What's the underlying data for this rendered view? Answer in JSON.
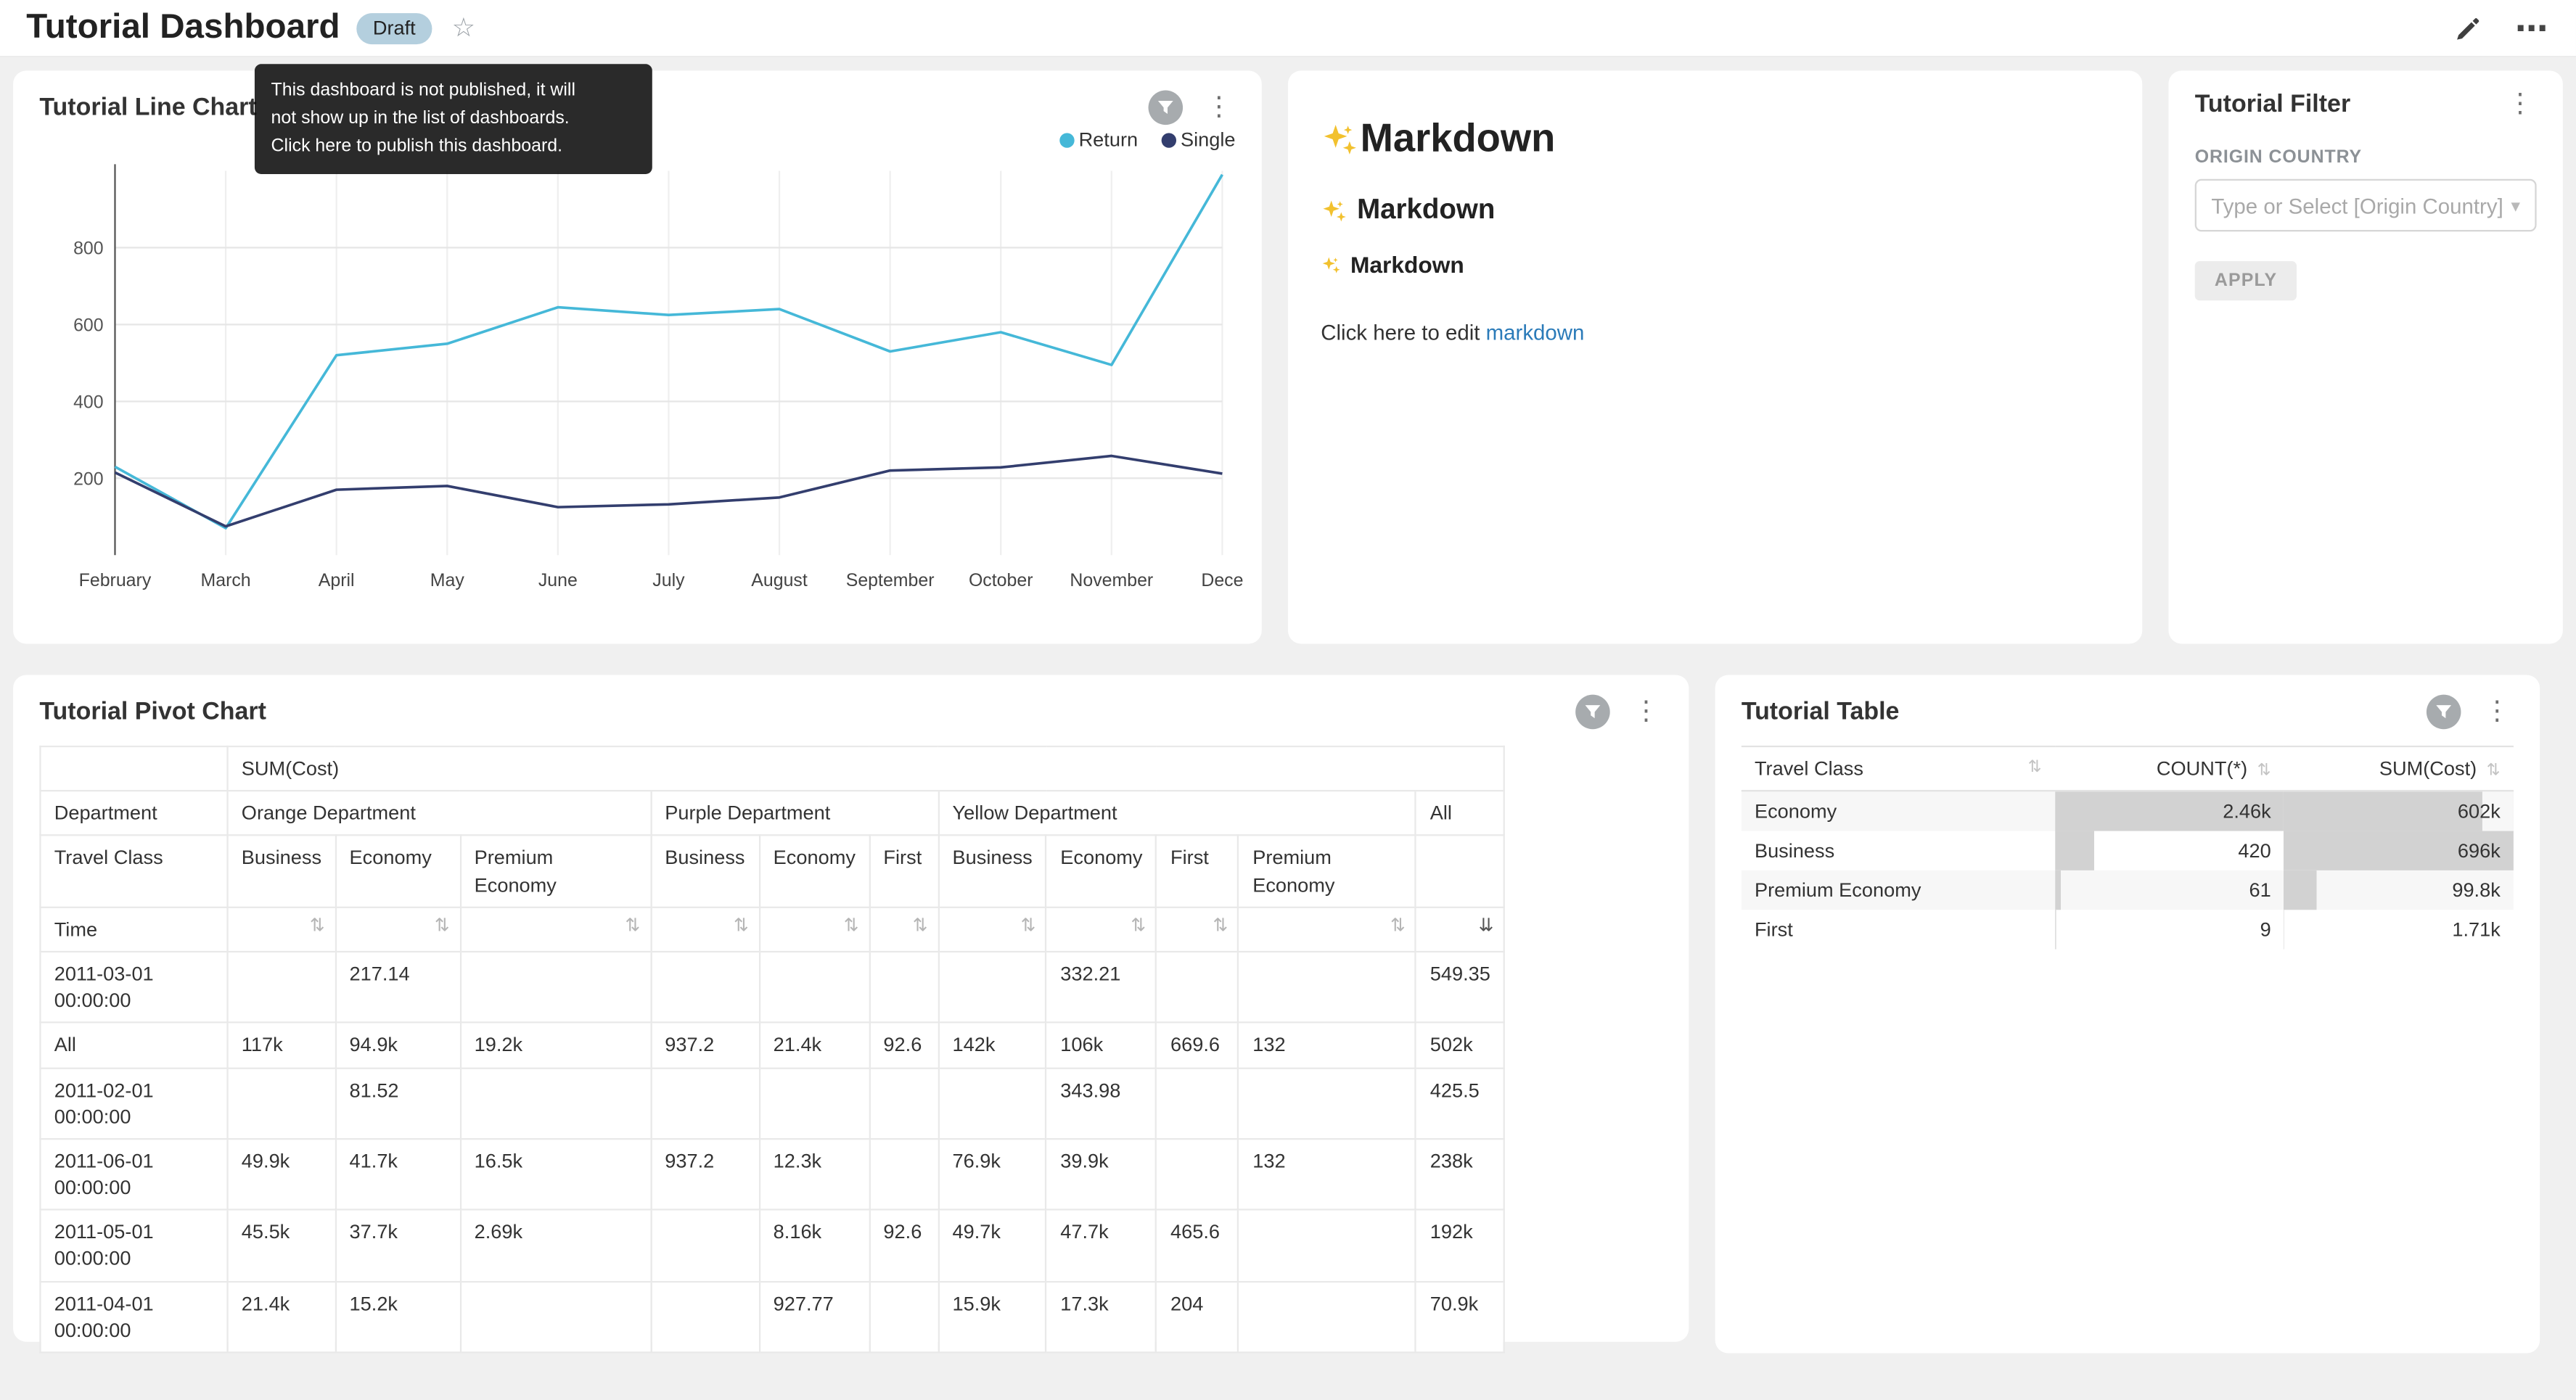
{
  "header": {
    "title": "Tutorial Dashboard",
    "badge": "Draft",
    "tooltip_lines": [
      "This dashboard is not published, it will",
      "not show up in the list of dashboards.",
      "Click here to publish this dashboard."
    ]
  },
  "line_chart_card": {
    "title": "Tutorial Line Chart"
  },
  "chart_data": {
    "type": "line",
    "title": "Tutorial Line Chart",
    "x": [
      "February",
      "March",
      "April",
      "May",
      "June",
      "July",
      "August",
      "September",
      "October",
      "November",
      "December"
    ],
    "x_labels": [
      "February",
      "March",
      "April",
      "May",
      "June",
      "July",
      "August",
      "September",
      "October",
      "November",
      "Dece"
    ],
    "ylim": [
      0,
      1000
    ],
    "yticks": [
      200,
      400,
      600,
      800
    ],
    "grid": true,
    "legend_position": "top-right",
    "series": [
      {
        "name": "Return",
        "color": "#45b8d8",
        "values": [
          230,
          70,
          520,
          550,
          645,
          625,
          640,
          530,
          580,
          495,
          990
        ]
      },
      {
        "name": "Single",
        "color": "#333e6e",
        "values": [
          215,
          75,
          170,
          180,
          125,
          132,
          150,
          220,
          228,
          258,
          212
        ]
      }
    ]
  },
  "markdown_card": {
    "h1": "Markdown",
    "h2": "Markdown",
    "h3": "Markdown",
    "sparkle_icon": "sparkles",
    "paragraph_prefix": "Click here to edit ",
    "link_text": "markdown",
    "link_color": "#2b7bb9"
  },
  "filter_card": {
    "title": "Tutorial Filter",
    "field_label": "ORIGIN COUNTRY",
    "select_placeholder": "Type or Select [Origin Country]",
    "apply_label": "APPLY"
  },
  "pivot_card": {
    "title": "Tutorial Pivot Chart",
    "metric_header": "SUM(Cost)",
    "department_row_label": "Department",
    "travel_class_row_label": "Travel Class",
    "time_row_label": "Time",
    "groups": [
      {
        "name": "Orange Department",
        "cols": [
          "Business",
          "Economy",
          "Premium Economy"
        ]
      },
      {
        "name": "Purple Department",
        "cols": [
          "Business",
          "Economy",
          "First"
        ]
      },
      {
        "name": "Yellow Department",
        "cols": [
          "Business",
          "Economy",
          "First",
          "Premium Economy"
        ]
      },
      {
        "name": "All",
        "cols": [
          ""
        ]
      }
    ],
    "rows": [
      {
        "time": "2011-03-01 00:00:00",
        "values": [
          "",
          "217.14",
          "",
          "",
          "",
          "",
          "",
          "332.21",
          "",
          "",
          "549.35"
        ]
      },
      {
        "time": "All",
        "values": [
          "117k",
          "94.9k",
          "19.2k",
          "937.2",
          "21.4k",
          "92.6",
          "142k",
          "106k",
          "669.6",
          "132",
          "502k"
        ]
      },
      {
        "time": "2011-02-01 00:00:00",
        "values": [
          "",
          "81.52",
          "",
          "",
          "",
          "",
          "",
          "343.98",
          "",
          "",
          "425.5"
        ]
      },
      {
        "time": "2011-06-01 00:00:00",
        "values": [
          "49.9k",
          "41.7k",
          "16.5k",
          "937.2",
          "12.3k",
          "",
          "76.9k",
          "39.9k",
          "",
          "132",
          "238k"
        ]
      },
      {
        "time": "2011-05-01 00:00:00",
        "values": [
          "45.5k",
          "37.7k",
          "2.69k",
          "",
          "8.16k",
          "92.6",
          "49.7k",
          "47.7k",
          "465.6",
          "",
          "192k"
        ]
      },
      {
        "time": "2011-04-01 00:00:00",
        "values": [
          "21.4k",
          "15.2k",
          "",
          "",
          "927.77",
          "",
          "15.9k",
          "17.3k",
          "204",
          "",
          "70.9k"
        ]
      }
    ]
  },
  "table_card": {
    "title": "Tutorial Table",
    "columns": [
      "Travel Class",
      "COUNT(*)",
      "SUM(Cost)"
    ],
    "bar_color": "#d2d2d2",
    "rows": [
      {
        "travel_class": "Economy",
        "count_label": "2.46k",
        "count": 2460,
        "sum_label": "602k",
        "sum": 602000
      },
      {
        "travel_class": "Business",
        "count_label": "420",
        "count": 420,
        "sum_label": "696k",
        "sum": 696000
      },
      {
        "travel_class": "Premium Economy",
        "count_label": "61",
        "count": 61,
        "sum_label": "99.8k",
        "sum": 99800
      },
      {
        "travel_class": "First",
        "count_label": "9",
        "count": 9,
        "sum_label": "1.71k",
        "sum": 1710
      }
    ]
  }
}
